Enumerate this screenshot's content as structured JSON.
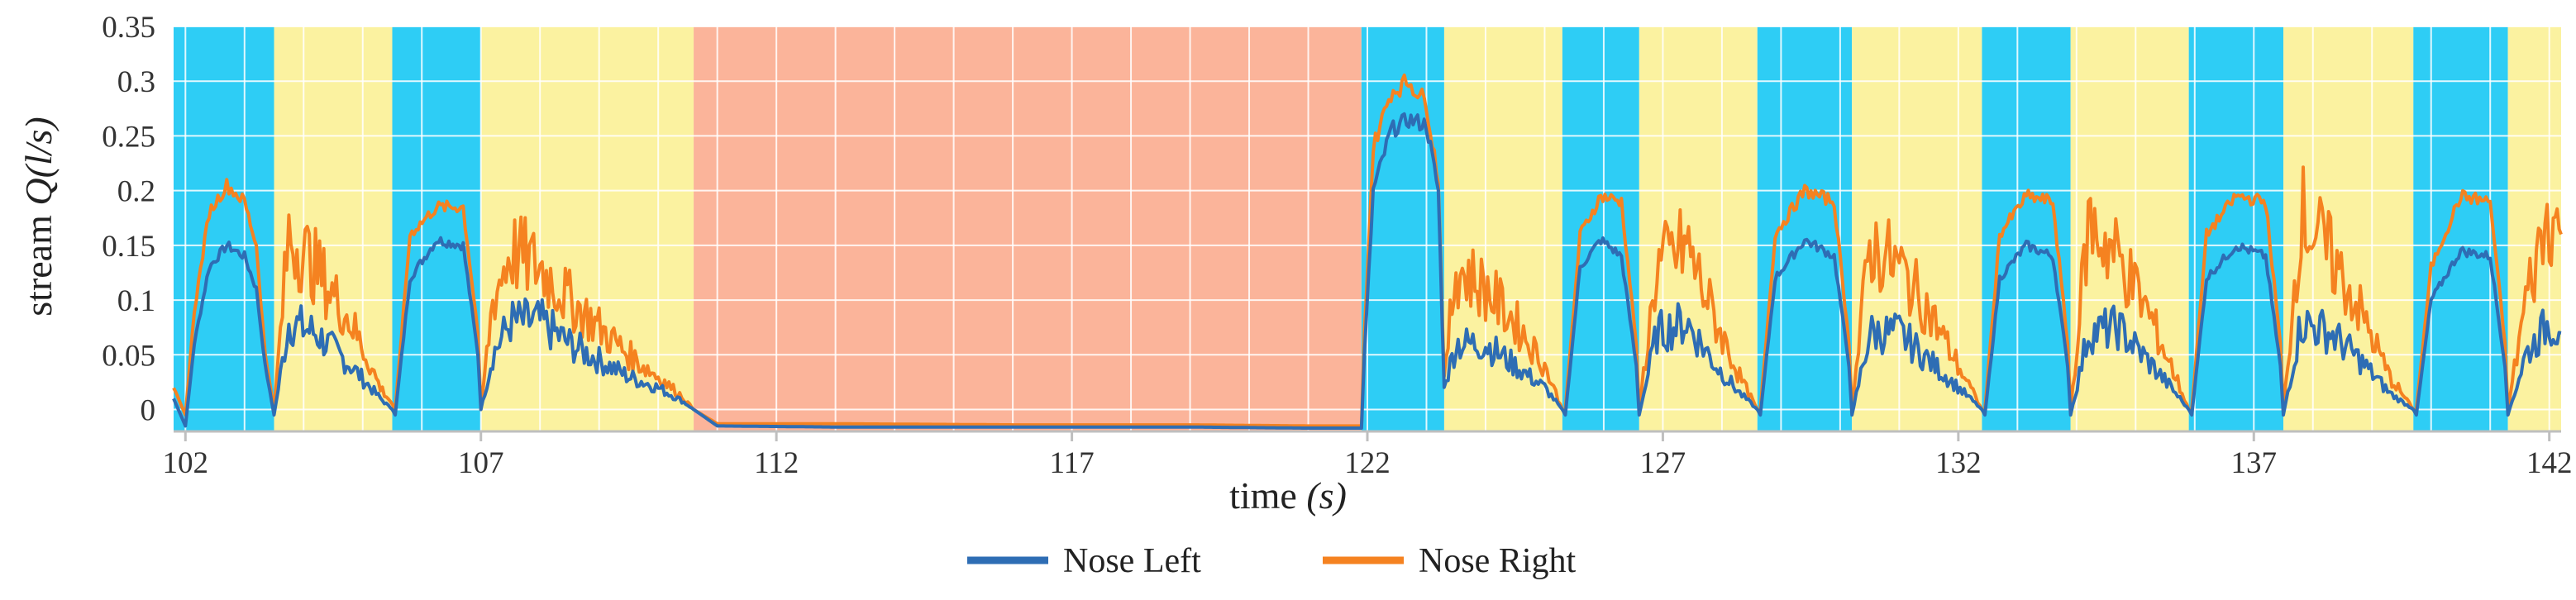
{
  "chart_data": {
    "type": "line",
    "title": "",
    "xlabel": "time",
    "xlabel_unit": "(s)",
    "ylabel": "stream",
    "ylabel_var": "Q",
    "ylabel_unit": "(l/s)",
    "xlim": [
      101.8,
      142.2
    ],
    "ylim": [
      -0.02,
      0.35
    ],
    "x_ticks": [
      102,
      107,
      112,
      117,
      122,
      127,
      132,
      137,
      142
    ],
    "y_ticks": [
      0,
      0.05,
      0.1,
      0.15,
      0.2,
      0.25,
      0.3,
      0.35
    ],
    "y_tick_labels": [
      "0",
      "0.05",
      "0.1",
      "0.15",
      "0.2",
      "0.25",
      "0.3",
      "0.35"
    ],
    "grid": true,
    "legend_position": "bottom-center",
    "phase_colors": {
      "inhale": "#2ecdf5",
      "exhale": "#fbf2a0",
      "hold": "#fbb49a"
    },
    "phases": [
      {
        "kind": "inhale",
        "start": 101.8,
        "end": 103.5
      },
      {
        "kind": "exhale",
        "start": 103.5,
        "end": 105.5
      },
      {
        "kind": "inhale",
        "start": 105.5,
        "end": 107.0
      },
      {
        "kind": "exhale",
        "start": 107.0,
        "end": 110.6
      },
      {
        "kind": "hold",
        "start": 110.6,
        "end": 121.9
      },
      {
        "kind": "inhale",
        "start": 121.9,
        "end": 123.3
      },
      {
        "kind": "exhale",
        "start": 123.3,
        "end": 125.3
      },
      {
        "kind": "inhale",
        "start": 125.3,
        "end": 126.6
      },
      {
        "kind": "exhale",
        "start": 126.6,
        "end": 128.6
      },
      {
        "kind": "inhale",
        "start": 128.6,
        "end": 130.2
      },
      {
        "kind": "exhale",
        "start": 130.2,
        "end": 132.4
      },
      {
        "kind": "inhale",
        "start": 132.4,
        "end": 133.9
      },
      {
        "kind": "exhale",
        "start": 133.9,
        "end": 135.9
      },
      {
        "kind": "inhale",
        "start": 135.9,
        "end": 137.5
      },
      {
        "kind": "exhale",
        "start": 137.5,
        "end": 139.7
      },
      {
        "kind": "inhale",
        "start": 139.7,
        "end": 141.3
      },
      {
        "kind": "exhale",
        "start": 141.3,
        "end": 142.2
      }
    ],
    "series": [
      {
        "name": "Nose Left",
        "color": "#2e6db4",
        "x": [
          101.8,
          102.0,
          102.15,
          102.4,
          102.7,
          103.0,
          103.2,
          103.35,
          103.5,
          103.75,
          104.2,
          104.8,
          105.3,
          105.5,
          105.55,
          105.8,
          106.25,
          106.7,
          106.95,
          107.0,
          107.2,
          107.5,
          108.0,
          108.5,
          109.0,
          109.5,
          110.0,
          110.4,
          110.6,
          111.0,
          113.0,
          116.0,
          119.0,
          121.0,
          121.9,
          121.95,
          122.1,
          122.4,
          122.7,
          123.0,
          123.2,
          123.3,
          123.5,
          124.0,
          124.5,
          125.0,
          125.3,
          125.35,
          125.6,
          125.95,
          126.3,
          126.55,
          126.6,
          126.9,
          127.4,
          127.9,
          128.3,
          128.6,
          128.65,
          128.9,
          129.4,
          129.9,
          130.15,
          130.2,
          130.5,
          131.0,
          131.5,
          132.1,
          132.4,
          132.45,
          132.7,
          133.15,
          133.6,
          133.85,
          133.9,
          134.2,
          134.7,
          135.2,
          135.6,
          135.9,
          135.95,
          136.2,
          136.7,
          137.2,
          137.45,
          137.5,
          137.8,
          138.3,
          138.8,
          139.3,
          139.7,
          139.75,
          140.0,
          140.5,
          141.0,
          141.25,
          141.3,
          141.6,
          142.0,
          142.2
        ],
        "y": [
          0.01,
          -0.015,
          0.06,
          0.13,
          0.15,
          0.14,
          0.11,
          0.04,
          -0.005,
          0.08,
          0.07,
          0.04,
          0.01,
          0.0,
          -0.005,
          0.12,
          0.155,
          0.15,
          0.05,
          0.0,
          0.05,
          0.08,
          0.08,
          0.06,
          0.045,
          0.03,
          0.02,
          0.008,
          0.0,
          -0.015,
          -0.016,
          -0.016,
          -0.016,
          -0.017,
          -0.017,
          0.05,
          0.2,
          0.255,
          0.265,
          0.26,
          0.2,
          0.02,
          0.06,
          0.06,
          0.04,
          0.02,
          0.0,
          -0.005,
          0.13,
          0.155,
          0.14,
          0.04,
          -0.005,
          0.07,
          0.08,
          0.04,
          0.015,
          0.0,
          -0.005,
          0.12,
          0.155,
          0.14,
          0.04,
          -0.005,
          0.07,
          0.07,
          0.045,
          0.015,
          0.0,
          -0.005,
          0.12,
          0.15,
          0.14,
          0.04,
          -0.005,
          0.07,
          0.075,
          0.045,
          0.02,
          0.0,
          -0.005,
          0.12,
          0.15,
          0.14,
          0.04,
          -0.005,
          0.08,
          0.07,
          0.045,
          0.015,
          0.0,
          -0.005,
          0.1,
          0.145,
          0.14,
          0.04,
          -0.005,
          0.05,
          0.08,
          0.07
        ]
      },
      {
        "name": "Nose Right",
        "color": "#f58220",
        "x": [
          101.8,
          102.0,
          102.15,
          102.4,
          102.7,
          103.0,
          103.2,
          103.35,
          103.5,
          103.75,
          104.2,
          104.8,
          105.3,
          105.5,
          105.55,
          105.8,
          106.25,
          106.7,
          106.95,
          107.0,
          107.2,
          107.5,
          108.0,
          108.5,
          109.0,
          109.5,
          110.0,
          110.4,
          110.6,
          111.0,
          113.0,
          116.0,
          119.0,
          121.0,
          121.9,
          121.95,
          122.1,
          122.4,
          122.7,
          123.0,
          123.2,
          123.3,
          123.5,
          124.0,
          124.5,
          125.0,
          125.3,
          125.35,
          125.6,
          125.95,
          126.3,
          126.55,
          126.6,
          126.9,
          127.4,
          127.9,
          128.3,
          128.6,
          128.65,
          128.9,
          129.4,
          129.9,
          130.15,
          130.2,
          130.5,
          131.0,
          131.5,
          132.1,
          132.4,
          132.45,
          132.7,
          133.15,
          133.6,
          133.85,
          133.9,
          134.2,
          134.7,
          135.2,
          135.6,
          135.9,
          135.95,
          136.2,
          136.7,
          137.2,
          137.45,
          137.5,
          137.8,
          138.3,
          138.8,
          139.3,
          139.7,
          139.75,
          140.0,
          140.5,
          141.0,
          141.25,
          141.3,
          141.6,
          142.0,
          142.2
        ],
        "y": [
          0.02,
          -0.005,
          0.09,
          0.18,
          0.205,
          0.19,
          0.15,
          0.05,
          0.0,
          0.16,
          0.13,
          0.08,
          0.02,
          0.005,
          0.0,
          0.16,
          0.185,
          0.185,
          0.07,
          0.0,
          0.1,
          0.145,
          0.13,
          0.1,
          0.075,
          0.05,
          0.03,
          0.012,
          0.0,
          -0.013,
          -0.013,
          -0.014,
          -0.014,
          -0.015,
          -0.015,
          0.07,
          0.24,
          0.29,
          0.3,
          0.28,
          0.21,
          0.03,
          0.13,
          0.11,
          0.08,
          0.04,
          0.0,
          0.0,
          0.16,
          0.195,
          0.19,
          0.06,
          0.0,
          0.13,
          0.15,
          0.08,
          0.03,
          0.0,
          0.0,
          0.16,
          0.2,
          0.19,
          0.06,
          0.0,
          0.15,
          0.13,
          0.09,
          0.03,
          0.0,
          0.0,
          0.16,
          0.195,
          0.19,
          0.06,
          0.0,
          0.17,
          0.14,
          0.09,
          0.04,
          0.0,
          0.0,
          0.16,
          0.195,
          0.19,
          0.06,
          0.0,
          0.18,
          0.14,
          0.09,
          0.03,
          0.0,
          0.0,
          0.13,
          0.195,
          0.19,
          0.06,
          0.0,
          0.1,
          0.18,
          0.16
        ]
      }
    ]
  }
}
